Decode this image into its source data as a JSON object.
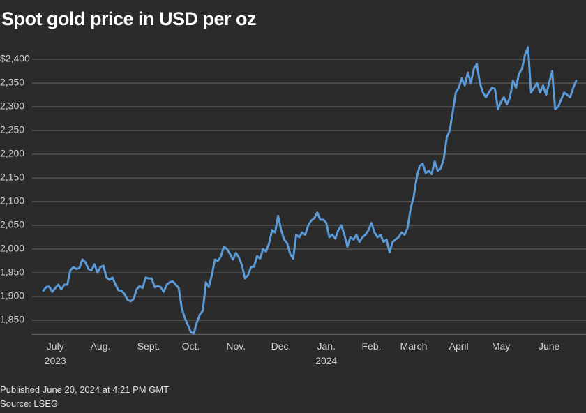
{
  "chart_data": {
    "type": "line",
    "title": "Spot gold price in USD per oz",
    "published": "Published June 20, 2024 at 4:21 PM GMT",
    "source": "Source: LSEG",
    "color": "#5a9ad8",
    "grid": true,
    "ylim": [
      1820,
      2430
    ],
    "yticks": [
      {
        "value": 1850,
        "label": "1,850"
      },
      {
        "value": 1900,
        "label": "1,900"
      },
      {
        "value": 1950,
        "label": "1,950"
      },
      {
        "value": 2000,
        "label": "2,000"
      },
      {
        "value": 2050,
        "label": "2,050"
      },
      {
        "value": 2100,
        "label": "2,100"
      },
      {
        "value": 2150,
        "label": "2,150"
      },
      {
        "value": 2200,
        "label": "2,200"
      },
      {
        "value": 2250,
        "label": "2,250"
      },
      {
        "value": 2300,
        "label": "2,300"
      },
      {
        "value": 2350,
        "label": "2,350"
      },
      {
        "value": 2400,
        "label": "$2,400"
      }
    ],
    "categories": [
      null,
      null,
      null,
      null,
      "July 2023",
      null,
      null,
      null,
      null,
      null,
      null,
      null,
      null,
      null,
      null,
      null,
      null,
      null,
      null,
      "Aug.",
      null,
      null,
      null,
      null,
      null,
      null,
      null,
      null,
      null,
      null,
      null,
      null,
      null,
      null,
      null,
      "Sept.",
      null,
      null,
      null,
      null,
      null,
      null,
      null,
      null,
      null,
      null,
      null,
      null,
      null,
      "Oct.",
      null,
      null,
      null,
      null,
      null,
      null,
      null,
      null,
      null,
      null,
      null,
      null,
      null,
      null,
      "Nov.",
      null,
      null,
      null,
      null,
      null,
      null,
      null,
      null,
      null,
      null,
      null,
      null,
      null,
      null,
      "Dec.",
      null,
      null,
      null,
      null,
      null,
      null,
      null,
      null,
      null,
      null,
      null,
      null,
      null,
      null,
      "Jan. 2024",
      null,
      null,
      null,
      null,
      null,
      null,
      null,
      null,
      null,
      null,
      null,
      null,
      null,
      null,
      "Feb.",
      null,
      null,
      null,
      null,
      null,
      null,
      null,
      null,
      null,
      null,
      null,
      null,
      null,
      "March",
      null,
      null,
      null,
      null,
      null,
      null,
      null,
      null,
      null,
      null,
      null,
      null,
      null,
      null,
      "April",
      null,
      null,
      null,
      null,
      null,
      null,
      null,
      null,
      null,
      null,
      null,
      null,
      null,
      "May",
      null,
      null,
      null,
      null,
      null,
      null,
      null,
      null,
      null,
      null,
      null,
      null,
      null,
      null,
      null,
      "June",
      null,
      null,
      null,
      null,
      null,
      null,
      null,
      null,
      null
    ],
    "values": [
      1912,
      1920,
      1921,
      1910,
      1918,
      1925,
      1915,
      1925,
      1925,
      1955,
      1962,
      1958,
      1960,
      1978,
      1972,
      1958,
      1955,
      1968,
      1950,
      1962,
      1965,
      1940,
      1935,
      1940,
      1925,
      1913,
      1912,
      1905,
      1893,
      1890,
      1895,
      1915,
      1922,
      1918,
      1940,
      1938,
      1938,
      1920,
      1922,
      1920,
      1910,
      1925,
      1930,
      1932,
      1925,
      1918,
      1875,
      1855,
      1840,
      1825,
      1822,
      1845,
      1862,
      1870,
      1930,
      1920,
      1945,
      1978,
      1975,
      1985,
      2005,
      2000,
      1990,
      1978,
      1992,
      1982,
      1965,
      1938,
      1945,
      1962,
      1963,
      1985,
      1980,
      2000,
      1995,
      2012,
      2040,
      2035,
      2070,
      2040,
      2020,
      2012,
      1990,
      1980,
      2030,
      2025,
      2035,
      2030,
      2050,
      2060,
      2065,
      2077,
      2062,
      2062,
      2055,
      2025,
      2030,
      2022,
      2040,
      2050,
      2030,
      2005,
      2025,
      2020,
      2030,
      2015,
      2025,
      2030,
      2040,
      2055,
      2035,
      2025,
      2030,
      2015,
      2020,
      1993,
      2015,
      2020,
      2025,
      2035,
      2030,
      2045,
      2085,
      2110,
      2150,
      2175,
      2180,
      2160,
      2165,
      2158,
      2185,
      2165,
      2170,
      2190,
      2235,
      2250,
      2290,
      2330,
      2340,
      2360,
      2345,
      2372,
      2350,
      2380,
      2390,
      2350,
      2330,
      2320,
      2330,
      2340,
      2338,
      2295,
      2310,
      2320,
      2305,
      2320,
      2355,
      2340,
      2370,
      2380,
      2410,
      2425,
      2330,
      2340,
      2350,
      2330,
      2345,
      2325,
      2350,
      2375,
      2295,
      2300,
      2315,
      2330,
      2325,
      2320,
      2340,
      2355
    ]
  }
}
